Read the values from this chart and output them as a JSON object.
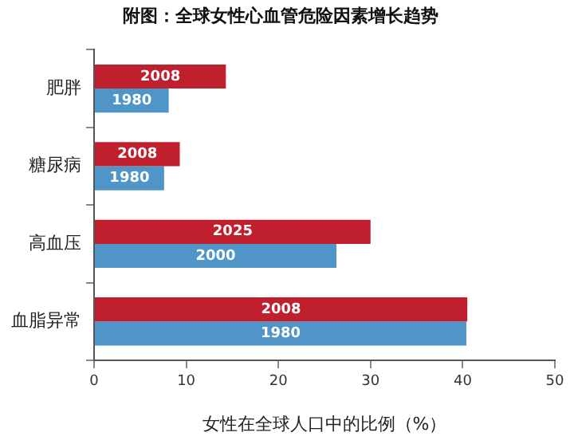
{
  "chart_data": {
    "type": "bar",
    "orientation": "horizontal",
    "title": "附图：全球女性心血管危险因素增长趋势",
    "xlabel": "女性在全球人口中的比例（%）",
    "categories": [
      "肥胖",
      "糖尿病",
      "高血压",
      "血脂异常"
    ],
    "series": [
      {
        "color": "#c0202e",
        "values": [
          14.3,
          9.3,
          30,
          40.5
        ]
      },
      {
        "color": "#4f95c8",
        "values": [
          8.1,
          7.6,
          26.3,
          40.4
        ]
      }
    ],
    "annotations": [
      "2008",
      "2008",
      "2025",
      "2008",
      "1980",
      "1980",
      "2000",
      "1980"
    ],
    "xlim": [
      0,
      50
    ],
    "xticks": [
      0,
      10,
      20,
      30,
      40,
      50
    ],
    "grid": false,
    "legend": false
  }
}
